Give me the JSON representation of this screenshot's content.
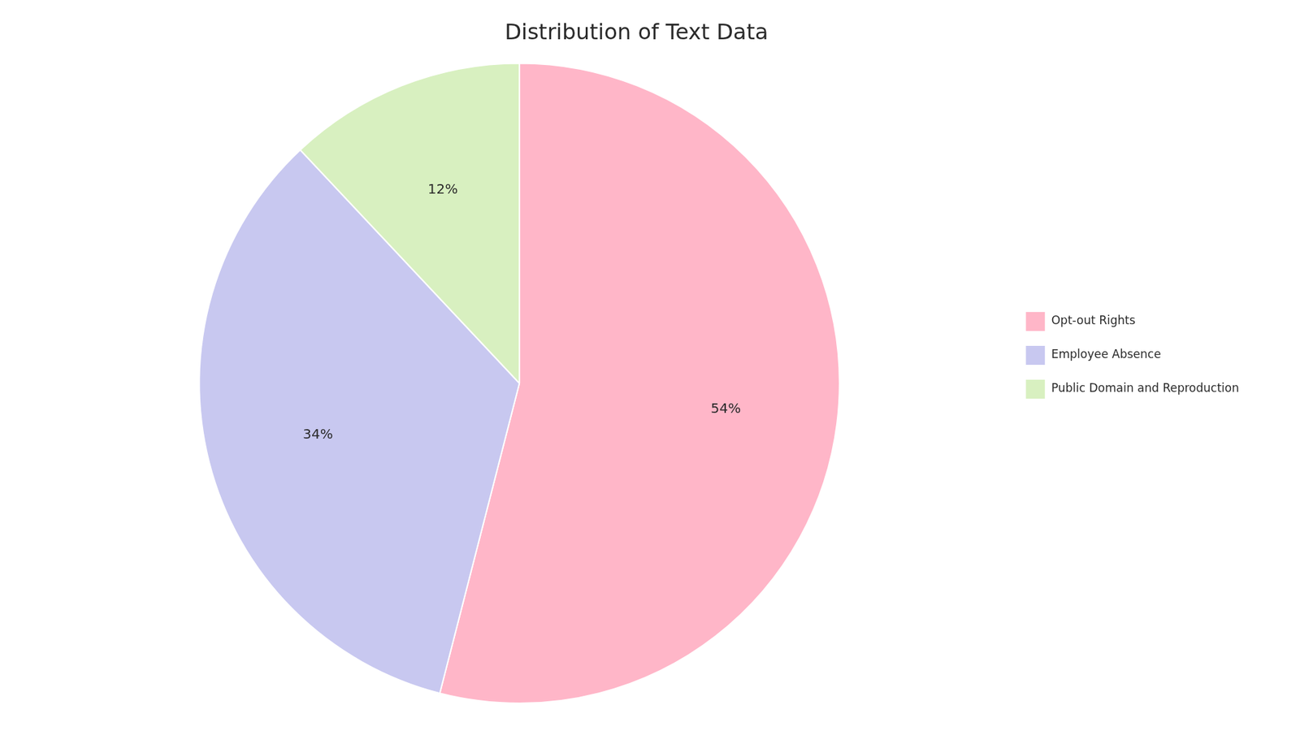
{
  "chart_data": {
    "type": "pie",
    "title": "Distribution of Text Data",
    "categories": [
      "Opt-out Rights",
      "Employee Absence",
      "Public Domain and Reproduction"
    ],
    "values": [
      54,
      34,
      12
    ],
    "value_labels": [
      "54%",
      "34%",
      "12%"
    ],
    "colors": [
      "#FFB6C8",
      "#C8C8F0",
      "#D8F0C0"
    ],
    "data_labels": true,
    "legend": "right"
  }
}
